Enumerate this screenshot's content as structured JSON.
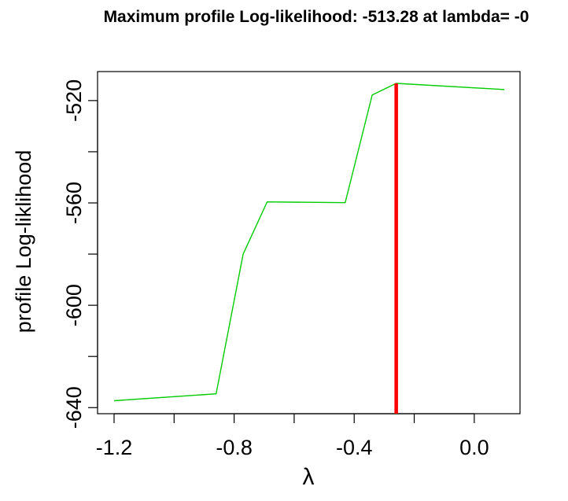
{
  "chart_data": {
    "type": "line",
    "title": "Maximum profile Log-likelihood: -513.28 at lambda= -0",
    "xlabel": "λ",
    "ylabel": "profile Log-liklihood",
    "xlim": [
      -1.2,
      0.1
    ],
    "ylim": [
      -637.3,
      -513.28
    ],
    "x_ticks": [
      -1.2,
      -0.8,
      -0.4,
      0.0
    ],
    "x_tick_labels": [
      "-1.2",
      "-0.8",
      "-0.4",
      "0.0"
    ],
    "y_ticks": [
      -640,
      -600,
      -560,
      -520
    ],
    "y_tick_labels": [
      "-640",
      "-600",
      "-560",
      "-520"
    ],
    "grid": false,
    "series": [
      {
        "color": "#00cc00",
        "x": [
          -1.2,
          -0.86,
          -0.77,
          -0.69,
          -0.43,
          -0.34,
          -0.26,
          0.1
        ],
        "y": [
          -637.3,
          -634.6,
          -580.0,
          -559.6,
          -559.9,
          -517.8,
          -513.28,
          -515.7
        ]
      }
    ],
    "vline": {
      "x": -0.26,
      "color": "#ff0000"
    }
  }
}
